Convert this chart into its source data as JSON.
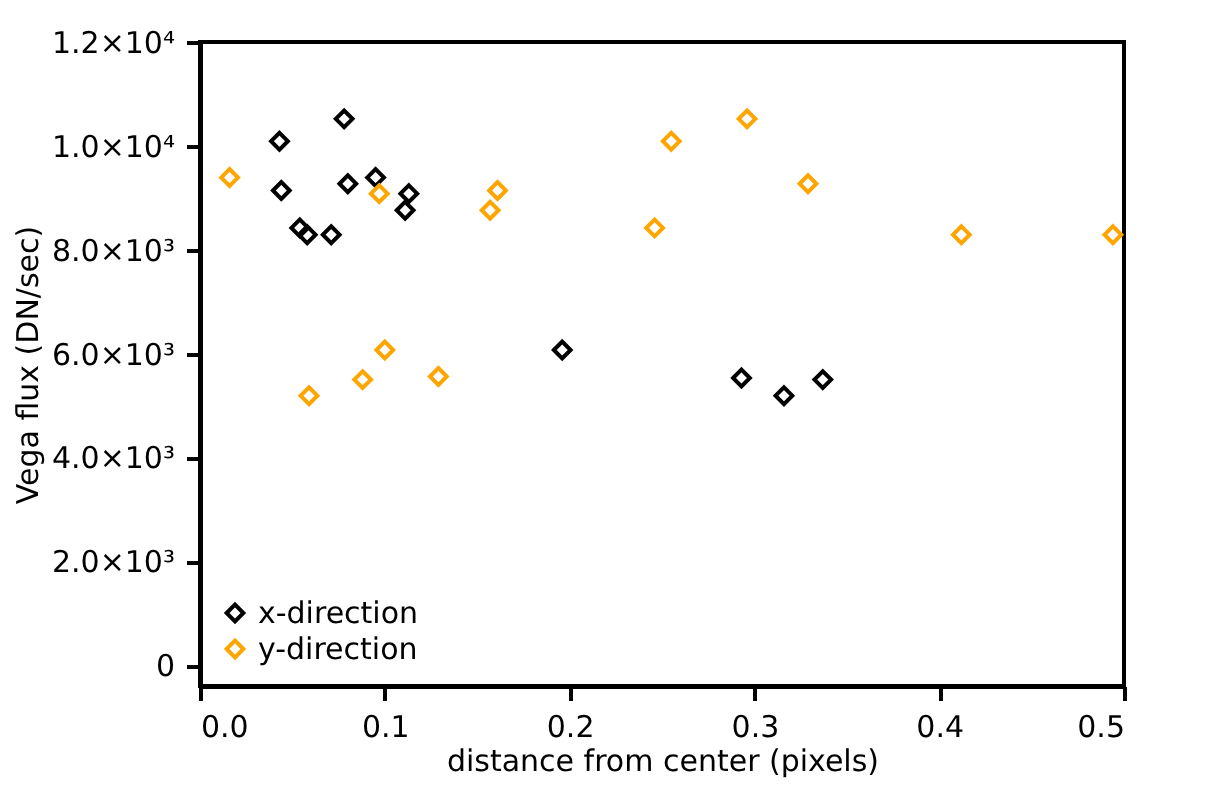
{
  "chart_data": {
    "type": "scatter",
    "xlabel": "distance from center (pixels)",
    "ylabel": "Vega flux (DN/sec)",
    "xlim": [
      0,
      0.5
    ],
    "xticks": [
      {
        "value": 0,
        "label": "0.0"
      },
      0.1,
      0.2,
      0.3,
      0.4,
      0.5
    ],
    "ylim": [
      -400,
      12000
    ],
    "yticks": [
      0,
      {
        "value": 2000,
        "label": "2.0×10³"
      },
      {
        "value": 4000,
        "label": "4.0×10³"
      },
      {
        "value": 6000,
        "label": "6.0×10³"
      },
      {
        "value": 8000,
        "label": "8.0×10³"
      },
      {
        "value": 10000,
        "label": "1.0×10⁴"
      },
      {
        "value": 12000,
        "label": "1.2×10⁴"
      }
    ],
    "marker": "diamond",
    "legend": "bottom left",
    "series": [
      {
        "name": "x-direction",
        "color": "#000000",
        "x": [
          0.043,
          0.044,
          0.054,
          0.058,
          0.071,
          0.078,
          0.08,
          0.095,
          0.113,
          0.111,
          0.196,
          0.293,
          0.316,
          0.337
        ],
        "values": [
          10090,
          9140,
          8420,
          8290,
          8290,
          10520,
          9270,
          9390,
          9080,
          8760,
          6070,
          5530,
          5190,
          5500
        ]
      },
      {
        "name": "y-direction",
        "color": "#ffa500",
        "x": [
          0.016,
          0.059,
          0.088,
          0.097,
          0.1,
          0.129,
          0.157,
          0.161,
          0.246,
          0.255,
          0.296,
          0.329,
          0.412,
          0.494
        ],
        "values": [
          9390,
          5190,
          5500,
          9080,
          6070,
          5560,
          8760,
          9140,
          8420,
          10090,
          10520,
          9270,
          8290,
          8290
        ]
      }
    ]
  }
}
